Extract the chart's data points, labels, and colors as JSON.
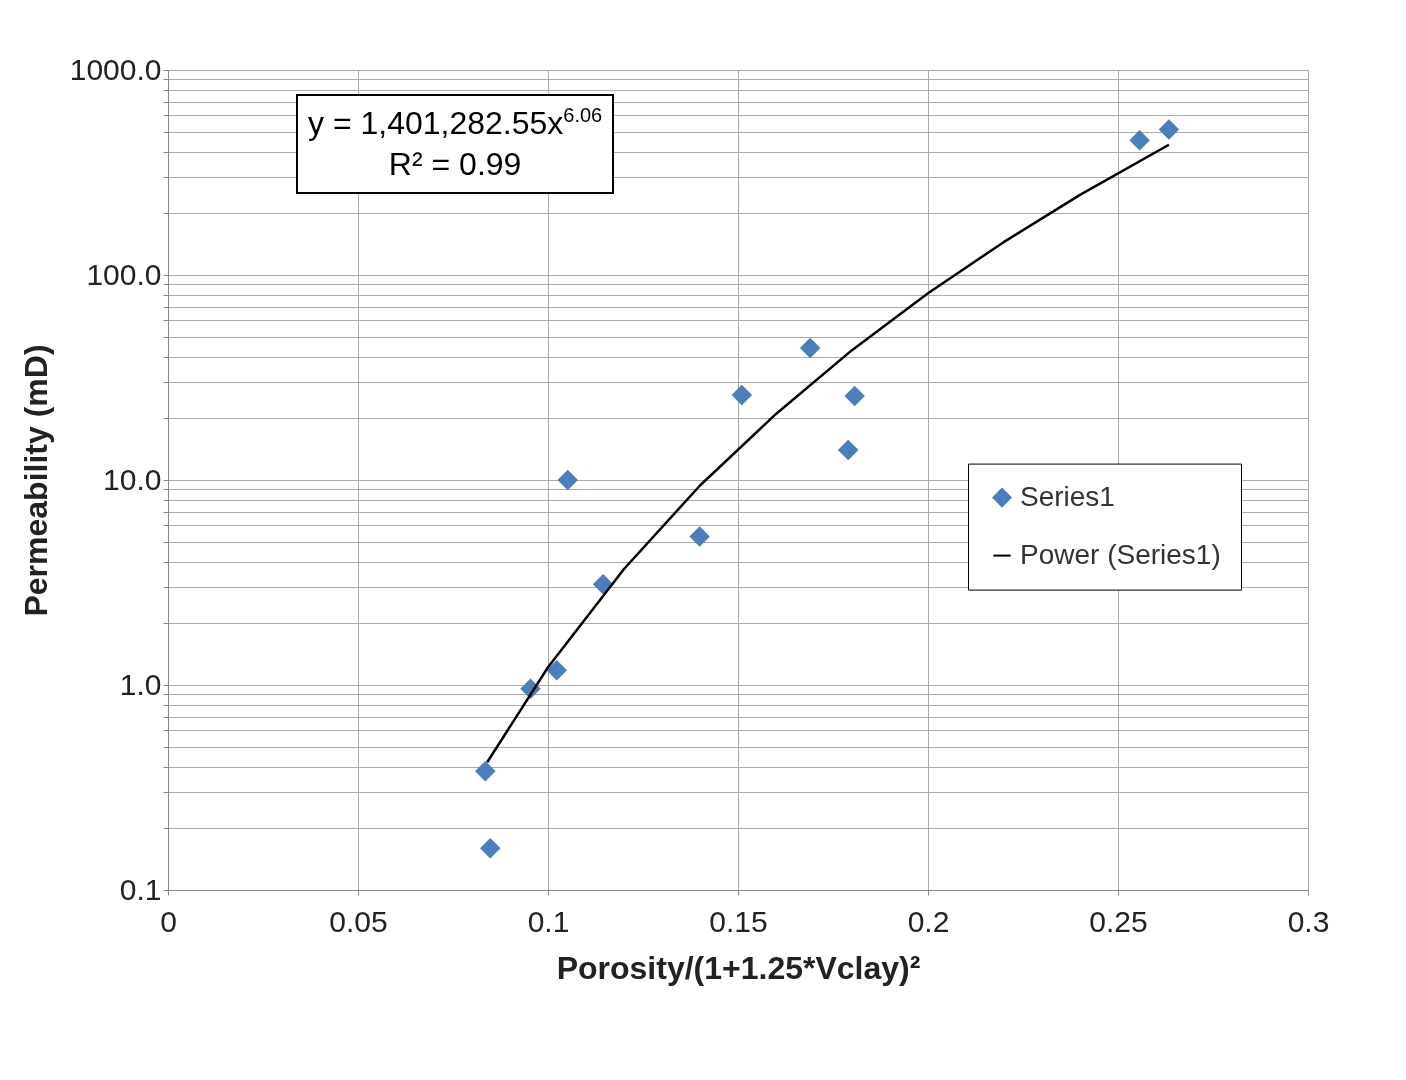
{
  "chart_data": {
    "type": "scatter",
    "xlabel": "Porosity/(1+1.25*Vclay)²",
    "ylabel": "Permeability (mD)",
    "log": "y",
    "grid": true,
    "legend": "right",
    "marker": "diamond",
    "xlim": [
      0,
      0.3
    ],
    "xticks": [
      0,
      0.05,
      0.1,
      0.15,
      0.2,
      0.25,
      0.3
    ],
    "ylim": [
      0.1,
      1000
    ],
    "yticks": [
      0.1,
      {
        "value": 0.2,
        "label": null
      },
      {
        "value": 0.3,
        "label": null
      },
      {
        "value": 0.4,
        "label": null
      },
      {
        "value": 0.5,
        "label": null
      },
      {
        "value": 0.6,
        "label": null
      },
      {
        "value": 0.7,
        "label": null
      },
      {
        "value": 0.8,
        "label": null
      },
      {
        "value": 0.9,
        "label": null
      },
      {
        "value": 1,
        "label": "1.0"
      },
      {
        "value": 2,
        "label": null
      },
      {
        "value": 3,
        "label": null
      },
      {
        "value": 4,
        "label": null
      },
      {
        "value": 5,
        "label": null
      },
      {
        "value": 6,
        "label": null
      },
      {
        "value": 7,
        "label": null
      },
      {
        "value": 8,
        "label": null
      },
      {
        "value": 9,
        "label": null
      },
      {
        "value": 10,
        "label": "10.0"
      },
      {
        "value": 20,
        "label": null
      },
      {
        "value": 30,
        "label": null
      },
      {
        "value": 40,
        "label": null
      },
      {
        "value": 50,
        "label": null
      },
      {
        "value": 60,
        "label": null
      },
      {
        "value": 70,
        "label": null
      },
      {
        "value": 80,
        "label": null
      },
      {
        "value": 90,
        "label": null
      },
      {
        "value": 100,
        "label": "100.0"
      },
      {
        "value": 200,
        "label": null
      },
      {
        "value": 300,
        "label": null
      },
      {
        "value": 400,
        "label": null
      },
      {
        "value": 500,
        "label": null
      },
      {
        "value": 600,
        "label": null
      },
      {
        "value": 700,
        "label": null
      },
      {
        "value": 800,
        "label": null
      },
      {
        "value": 900,
        "label": null
      },
      {
        "value": 1000,
        "label": "1000.0"
      }
    ],
    "annotations": [
      "y = 1,401,282.55x$^{6.06}$",
      "R² = 0.99"
    ],
    "series": [
      {
        "name": "Series1",
        "color": "#4a7ebf",
        "x": [
          0.0835,
          0.0848,
          0.0954,
          0.1023,
          0.1052,
          0.1145,
          0.1399,
          0.151,
          0.169,
          0.179,
          0.1807,
          0.2557,
          0.2634
        ],
        "values": [
          0.38,
          0.16,
          0.96,
          1.18,
          10,
          3.1,
          5.3,
          26,
          44,
          14,
          25.7,
          454,
          513
        ]
      },
      {
        "name": "Power (Series1)",
        "type": "line",
        "color": "#000000",
        "line_style": "solid",
        "marker": "none",
        "x": [
          0.084,
          0.1,
          0.12,
          0.14,
          0.16,
          0.18,
          0.2,
          0.22,
          0.24,
          0.2634
        ],
        "values": [
          0.42,
          1.22,
          3.68,
          9.4,
          21,
          43,
          81.5,
          145,
          246,
          432
        ]
      }
    ]
  }
}
